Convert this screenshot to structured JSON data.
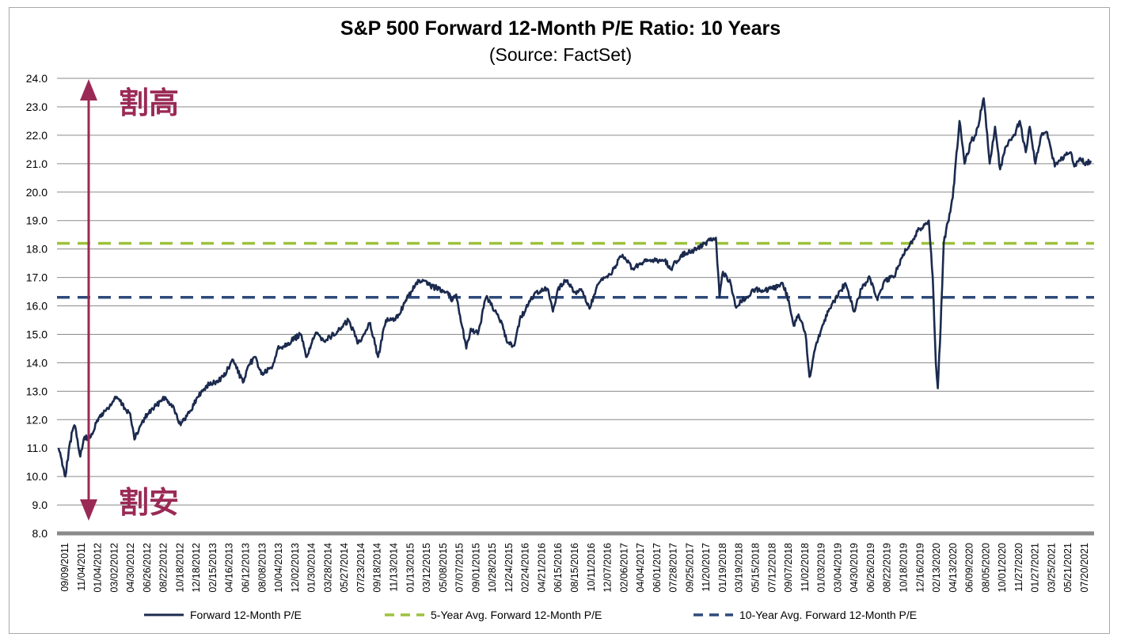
{
  "chart_data": {
    "type": "line",
    "title": "S&P 500 Forward 12-Month P/E Ratio: 10 Years",
    "subtitle": "(Source: FactSet)",
    "ylim": [
      8.0,
      24.0
    ],
    "yticks": [
      "8.0",
      "9.0",
      "10.0",
      "11.0",
      "12.0",
      "13.0",
      "14.0",
      "15.0",
      "16.0",
      "17.0",
      "18.0",
      "19.0",
      "20.0",
      "21.0",
      "22.0",
      "23.0",
      "24.0"
    ],
    "grid": true,
    "legend_position": "bottom",
    "x_date_range": [
      "2011-09-09",
      "2021-09-17"
    ],
    "x_tick_labels": [
      "09/09/2011",
      "11/04/2011",
      "01/04/2012",
      "03/02/2012",
      "04/30/2012",
      "06/26/2012",
      "08/22/2012",
      "10/18/2012",
      "12/18/2012",
      "02/15/2013",
      "04/16/2013",
      "06/12/2013",
      "08/08/2013",
      "10/04/2013",
      "12/02/2013",
      "01/30/2014",
      "03/28/2014",
      "05/27/2014",
      "07/23/2014",
      "09/18/2014",
      "11/13/2014",
      "01/13/2015",
      "03/12/2015",
      "05/08/2015",
      "07/07/2015",
      "09/01/2015",
      "10/28/2015",
      "12/24/2015",
      "02/24/2016",
      "04/21/2016",
      "06/15/2016",
      "08/15/2016",
      "10/11/2016",
      "12/07/2016",
      "02/06/2017",
      "04/04/2017",
      "06/01/2017",
      "07/28/2017",
      "09/25/2017",
      "11/20/2017",
      "01/19/2018",
      "03/19/2018",
      "05/15/2018",
      "07/12/2018",
      "09/07/2018",
      "11/02/2018",
      "01/03/2019",
      "03/04/2019",
      "04/30/2019",
      "06/26/2019",
      "08/22/2019",
      "10/18/2019",
      "12/16/2019",
      "02/13/2020",
      "04/13/2020",
      "06/09/2020",
      "08/05/2020",
      "10/01/2020",
      "11/27/2020",
      "01/27/2021",
      "03/25/2021",
      "05/21/2021",
      "07/20/2021"
    ],
    "series": [
      {
        "name": "Forward 12-Month P/E",
        "color": "#1b2a4e",
        "style": "solid",
        "points": [
          [
            "2011-09-09",
            11.0
          ],
          [
            "2011-09-20",
            10.6
          ],
          [
            "2011-10-03",
            10.0
          ],
          [
            "2011-10-15",
            10.9
          ],
          [
            "2011-10-28",
            11.6
          ],
          [
            "2011-11-04",
            11.8
          ],
          [
            "2011-11-15",
            11.3
          ],
          [
            "2011-11-25",
            10.7
          ],
          [
            "2011-12-10",
            11.4
          ],
          [
            "2011-12-25",
            11.3
          ],
          [
            "2012-01-04",
            11.5
          ],
          [
            "2012-02-01",
            12.1
          ],
          [
            "2012-03-02",
            12.4
          ],
          [
            "2012-04-02",
            12.8
          ],
          [
            "2012-05-01",
            12.4
          ],
          [
            "2012-05-20",
            12.2
          ],
          [
            "2012-06-04",
            11.3
          ],
          [
            "2012-06-26",
            11.8
          ],
          [
            "2012-07-20",
            12.2
          ],
          [
            "2012-08-22",
            12.5
          ],
          [
            "2012-09-14",
            12.8
          ],
          [
            "2012-10-18",
            12.5
          ],
          [
            "2012-11-15",
            11.8
          ],
          [
            "2012-12-18",
            12.3
          ],
          [
            "2013-01-15",
            12.8
          ],
          [
            "2013-02-15",
            13.2
          ],
          [
            "2013-03-15",
            13.3
          ],
          [
            "2013-04-16",
            13.5
          ],
          [
            "2013-05-20",
            14.1
          ],
          [
            "2013-06-24",
            13.3
          ],
          [
            "2013-07-20",
            14.0
          ],
          [
            "2013-08-08",
            14.2
          ],
          [
            "2013-08-28",
            13.6
          ],
          [
            "2013-10-04",
            13.8
          ],
          [
            "2013-10-25",
            14.5
          ],
          [
            "2013-12-02",
            14.7
          ],
          [
            "2014-01-15",
            15.0
          ],
          [
            "2014-02-03",
            14.2
          ],
          [
            "2014-03-07",
            15.0
          ],
          [
            "2014-04-14",
            14.8
          ],
          [
            "2014-05-27",
            15.1
          ],
          [
            "2014-07-03",
            15.5
          ],
          [
            "2014-08-07",
            14.7
          ],
          [
            "2014-09-18",
            15.4
          ],
          [
            "2014-10-16",
            14.2
          ],
          [
            "2014-11-13",
            15.5
          ],
          [
            "2014-12-16",
            15.5
          ],
          [
            "2015-01-13",
            16.0
          ],
          [
            "2015-02-10",
            16.5
          ],
          [
            "2015-03-12",
            16.9
          ],
          [
            "2015-04-20",
            16.7
          ],
          [
            "2015-05-20",
            16.6
          ],
          [
            "2015-06-18",
            16.5
          ],
          [
            "2015-07-07",
            16.2
          ],
          [
            "2015-07-20",
            16.4
          ],
          [
            "2015-08-25",
            14.5
          ],
          [
            "2015-09-10",
            15.2
          ],
          [
            "2015-10-05",
            15.0
          ],
          [
            "2015-11-03",
            16.3
          ],
          [
            "2015-12-15",
            15.7
          ],
          [
            "2016-01-20",
            14.7
          ],
          [
            "2016-02-11",
            14.6
          ],
          [
            "2016-03-01",
            15.5
          ],
          [
            "2016-04-21",
            16.4
          ],
          [
            "2016-06-08",
            16.6
          ],
          [
            "2016-06-27",
            15.8
          ],
          [
            "2016-07-15",
            16.6
          ],
          [
            "2016-08-15",
            16.9
          ],
          [
            "2016-09-12",
            16.5
          ],
          [
            "2016-10-11",
            16.5
          ],
          [
            "2016-11-04",
            15.9
          ],
          [
            "2016-12-07",
            16.8
          ],
          [
            "2017-01-15",
            17.1
          ],
          [
            "2017-03-01",
            17.8
          ],
          [
            "2017-04-04",
            17.3
          ],
          [
            "2017-06-01",
            17.6
          ],
          [
            "2017-07-28",
            17.6
          ],
          [
            "2017-08-20",
            17.3
          ],
          [
            "2017-09-25",
            17.8
          ],
          [
            "2017-11-20",
            18.0
          ],
          [
            "2017-12-20",
            18.2
          ],
          [
            "2018-01-05",
            18.3
          ],
          [
            "2018-01-26",
            18.4
          ],
          [
            "2018-02-08",
            16.3
          ],
          [
            "2018-02-20",
            17.2
          ],
          [
            "2018-03-19",
            16.8
          ],
          [
            "2018-04-05",
            16.0
          ],
          [
            "2018-05-15",
            16.3
          ],
          [
            "2018-06-15",
            16.6
          ],
          [
            "2018-07-12",
            16.5
          ],
          [
            "2018-08-15",
            16.6
          ],
          [
            "2018-09-20",
            16.8
          ],
          [
            "2018-10-11",
            16.2
          ],
          [
            "2018-10-29",
            15.3
          ],
          [
            "2018-11-15",
            15.7
          ],
          [
            "2018-12-10",
            15.0
          ],
          [
            "2018-12-24",
            13.5
          ],
          [
            "2019-01-15",
            14.6
          ],
          [
            "2019-02-15",
            15.5
          ],
          [
            "2019-03-04",
            15.9
          ],
          [
            "2019-04-30",
            16.8
          ],
          [
            "2019-05-31",
            15.8
          ],
          [
            "2019-06-26",
            16.6
          ],
          [
            "2019-07-26",
            17.0
          ],
          [
            "2019-08-22",
            16.2
          ],
          [
            "2019-09-20",
            16.9
          ],
          [
            "2019-10-18",
            17.0
          ],
          [
            "2019-11-20",
            17.8
          ],
          [
            "2019-12-16",
            18.2
          ],
          [
            "2020-01-17",
            18.7
          ],
          [
            "2020-02-12",
            18.9
          ],
          [
            "2020-02-20",
            19.0
          ],
          [
            "2020-03-05",
            17.0
          ],
          [
            "2020-03-16",
            14.0
          ],
          [
            "2020-03-23",
            13.1
          ],
          [
            "2020-04-02",
            15.3
          ],
          [
            "2020-04-13",
            18.2
          ],
          [
            "2020-05-15",
            19.8
          ],
          [
            "2020-06-08",
            22.5
          ],
          [
            "2020-06-26",
            21.0
          ],
          [
            "2020-07-20",
            21.8
          ],
          [
            "2020-08-05",
            22.0
          ],
          [
            "2020-09-02",
            23.3
          ],
          [
            "2020-09-23",
            21.0
          ],
          [
            "2020-10-12",
            22.3
          ],
          [
            "2020-10-30",
            20.8
          ],
          [
            "2020-11-20",
            21.6
          ],
          [
            "2020-12-20",
            22.0
          ],
          [
            "2021-01-08",
            22.5
          ],
          [
            "2021-01-29",
            21.4
          ],
          [
            "2021-02-12",
            22.3
          ],
          [
            "2021-03-04",
            21.0
          ],
          [
            "2021-03-25",
            22.0
          ],
          [
            "2021-04-15",
            22.1
          ],
          [
            "2021-05-12",
            20.9
          ],
          [
            "2021-06-01",
            21.1
          ],
          [
            "2021-06-20",
            21.3
          ],
          [
            "2021-07-08",
            21.4
          ],
          [
            "2021-07-20",
            20.9
          ],
          [
            "2021-08-10",
            21.2
          ],
          [
            "2021-08-25",
            21.0
          ],
          [
            "2021-09-17",
            21.1
          ]
        ]
      },
      {
        "name": "5-Year Avg. Forward 12-Month P/E",
        "color": "#9dc13c",
        "style": "dashed",
        "value": 18.2
      },
      {
        "name": "10-Year Avg. Forward 12-Month P/E",
        "color": "#2f4a7a",
        "style": "dashed",
        "value": 16.3
      }
    ],
    "annotations": [
      {
        "text": "割高",
        "color": "#9a2a55"
      },
      {
        "text": "割安",
        "color": "#9a2a55"
      }
    ]
  }
}
